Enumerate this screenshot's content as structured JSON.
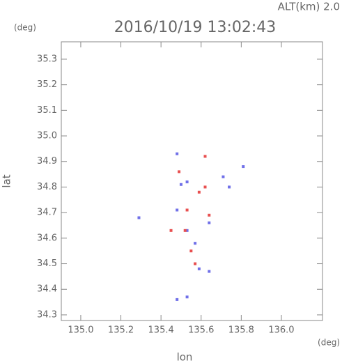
{
  "chart_data": {
    "type": "scatter",
    "title": "2016/10/19 13:02:43",
    "annotation": "ALT(km) 2.0",
    "y_unit": "(deg)",
    "x_unit": "(deg)",
    "x_label": "lon",
    "y_label": "lat",
    "xlim": [
      134.903,
      136.205
    ],
    "ylim": [
      34.278,
      35.368
    ],
    "xticks": [
      {
        "value": 135,
        "label": "135.0"
      },
      135.2,
      135.4,
      135.6,
      135.8,
      {
        "value": 136,
        "label": "136.0"
      }
    ],
    "yticks": [
      34.3,
      34.4,
      34.5,
      34.6,
      34.7,
      34.8,
      34.9,
      {
        "value": 35,
        "label": "35.0"
      },
      35.1,
      35.2,
      35.3
    ],
    "series": [
      {
        "color": "#7070e8",
        "x": [
          135.29,
          135.48,
          135.53,
          135.71,
          135.81,
          135.48,
          135.53,
          135.64,
          135.53,
          135.48,
          135.59,
          135.64,
          135.74,
          135.5,
          135.57
        ],
        "y": [
          34.68,
          34.93,
          34.82,
          34.84,
          34.88,
          34.36,
          34.37,
          34.66,
          34.63,
          34.71,
          34.48,
          34.47,
          34.8,
          34.81,
          34.58
        ]
      },
      {
        "color": "#e85050",
        "x": [
          135.49,
          135.62,
          135.55,
          135.52,
          135.64,
          135.59,
          135.45,
          135.57,
          135.62,
          135.53
        ],
        "y": [
          34.86,
          34.8,
          34.55,
          34.63,
          34.69,
          34.78,
          34.63,
          34.5,
          34.92,
          34.71
        ]
      }
    ]
  }
}
